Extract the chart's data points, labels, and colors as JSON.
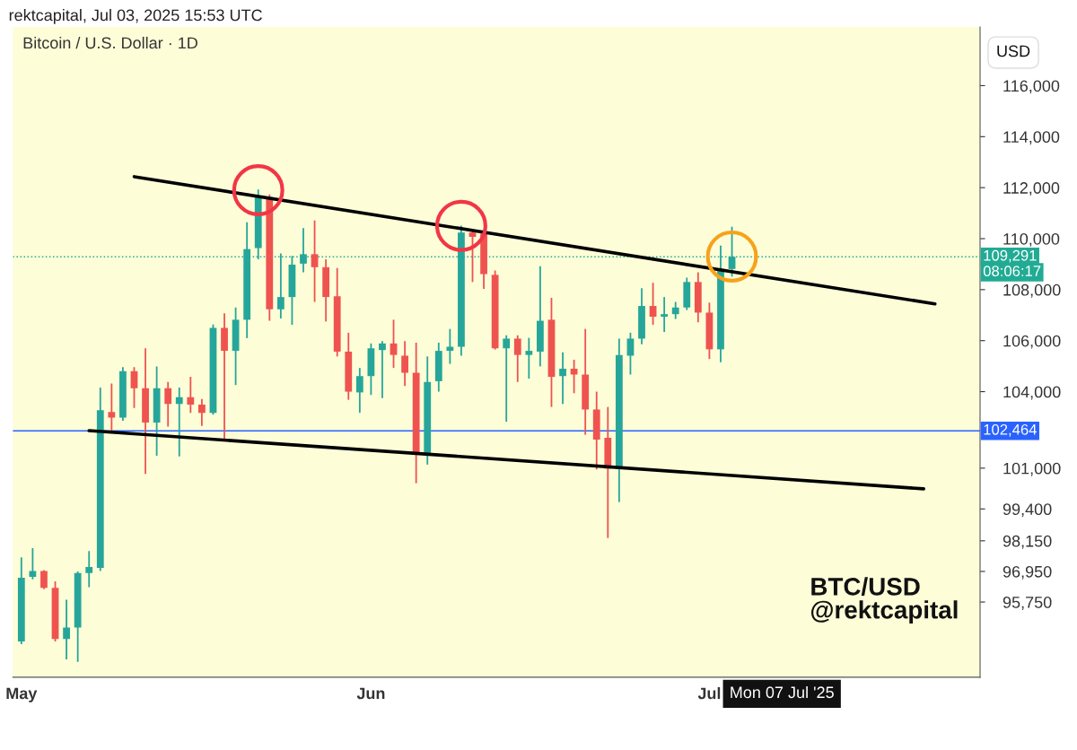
{
  "chart_data": {
    "type": "candlestick",
    "title": "Bitcoin / U.S. Dollar · 1D",
    "annotations": [
      "rektcapital, Jul 03, 2025 15:53 UTC",
      "USD",
      "08:06:17",
      "BTC/USD",
      "@rektcapital",
      "Mon 07 Jul '25"
    ],
    "x": [
      "2025-05-01",
      "2025-05-02",
      "2025-05-03",
      "2025-05-04",
      "2025-05-05",
      "2025-05-06",
      "2025-05-07",
      "2025-05-08",
      "2025-05-09",
      "2025-05-10",
      "2025-05-11",
      "2025-05-12",
      "2025-05-13",
      "2025-05-14",
      "2025-05-15",
      "2025-05-16",
      "2025-05-17",
      "2025-05-18",
      "2025-05-19",
      "2025-05-20",
      "2025-05-21",
      "2025-05-22",
      "2025-05-23",
      "2025-05-24",
      "2025-05-25",
      "2025-05-26",
      "2025-05-27",
      "2025-05-28",
      "2025-05-29",
      "2025-05-30",
      "2025-05-31",
      "2025-06-01",
      "2025-06-02",
      "2025-06-03",
      "2025-06-04",
      "2025-06-05",
      "2025-06-06",
      "2025-06-07",
      "2025-06-08",
      "2025-06-09",
      "2025-06-10",
      "2025-06-11",
      "2025-06-12",
      "2025-06-13",
      "2025-06-14",
      "2025-06-15",
      "2025-06-16",
      "2025-06-17",
      "2025-06-18",
      "2025-06-19",
      "2025-06-20",
      "2025-06-21",
      "2025-06-22",
      "2025-06-23",
      "2025-06-24",
      "2025-06-25",
      "2025-06-26",
      "2025-06-27",
      "2025-06-28",
      "2025-06-29",
      "2025-06-30",
      "2025-07-01",
      "2025-07-02",
      "2025-07-03"
    ],
    "ohlc": [
      [
        94200,
        97500,
        94100,
        96700
      ],
      [
        96740,
        97860,
        96640,
        96970
      ],
      [
        96970,
        97000,
        96250,
        96310
      ],
      [
        96310,
        96560,
        94200,
        94300
      ],
      [
        94300,
        95840,
        93500,
        94750
      ],
      [
        94750,
        96950,
        93400,
        96890
      ],
      [
        96890,
        97750,
        96330,
        97120
      ],
      [
        97090,
        104160,
        96970,
        103270
      ],
      [
        103200,
        104320,
        102410,
        102980
      ],
      [
        102980,
        104960,
        102860,
        104800
      ],
      [
        104800,
        104960,
        103360,
        104130
      ],
      [
        104130,
        105700,
        100770,
        102790
      ],
      [
        102790,
        104990,
        101490,
        104130
      ],
      [
        104130,
        104380,
        102630,
        103520
      ],
      [
        103520,
        104160,
        101460,
        103780
      ],
      [
        103780,
        104580,
        103170,
        103490
      ],
      [
        103490,
        103710,
        102660,
        103170
      ],
      [
        103170,
        106630,
        103100,
        106500
      ],
      [
        106500,
        107070,
        102120,
        105600
      ],
      [
        105600,
        107300,
        104260,
        106820
      ],
      [
        106820,
        110640,
        106100,
        109590
      ],
      [
        109630,
        111930,
        109190,
        111630
      ],
      [
        111630,
        111730,
        106780,
        107230
      ],
      [
        107230,
        109420,
        106870,
        107710
      ],
      [
        107710,
        109320,
        106620,
        108980
      ],
      [
        109020,
        110410,
        108680,
        109390
      ],
      [
        109390,
        110710,
        107520,
        108880
      ],
      [
        108880,
        109190,
        106750,
        107710
      ],
      [
        107740,
        108850,
        105380,
        105570
      ],
      [
        105570,
        106310,
        103680,
        104000
      ],
      [
        103970,
        104930,
        103170,
        104610
      ],
      [
        104610,
        105890,
        103870,
        105700
      ],
      [
        105630,
        105980,
        103750,
        105890
      ],
      [
        105890,
        106820,
        104930,
        105440
      ],
      [
        105410,
        105980,
        104220,
        104740
      ],
      [
        104740,
        105920,
        100410,
        101550
      ],
      [
        101550,
        105380,
        101140,
        104380
      ],
      [
        104410,
        105920,
        104000,
        105600
      ],
      [
        105600,
        106460,
        105090,
        105760
      ],
      [
        105760,
        110510,
        105410,
        110240
      ],
      [
        110240,
        110340,
        108300,
        110070
      ],
      [
        110200,
        110340,
        108030,
        108610
      ],
      [
        108580,
        108750,
        105650,
        105700
      ],
      [
        105700,
        106210,
        102820,
        106080
      ],
      [
        106080,
        106210,
        104380,
        105440
      ],
      [
        105440,
        106110,
        104510,
        105600
      ],
      [
        105570,
        108920,
        104990,
        106780
      ],
      [
        106820,
        107680,
        103400,
        104580
      ],
      [
        104610,
        105540,
        103520,
        104900
      ],
      [
        104900,
        105250,
        103940,
        104670
      ],
      [
        104670,
        106460,
        102310,
        103300
      ],
      [
        103300,
        104000,
        100950,
        102120
      ],
      [
        102190,
        103400,
        98260,
        100980
      ],
      [
        100980,
        106080,
        99670,
        105440
      ],
      [
        105410,
        106310,
        104670,
        106080
      ],
      [
        106080,
        108060,
        105860,
        107360
      ],
      [
        107360,
        108270,
        106620,
        106940
      ],
      [
        106940,
        107710,
        106340,
        107040
      ],
      [
        107040,
        107520,
        106850,
        107300
      ],
      [
        107300,
        108470,
        107200,
        108300
      ],
      [
        108300,
        108680,
        106720,
        107100
      ],
      [
        107100,
        107490,
        105280,
        105660
      ],
      [
        105660,
        109730,
        105150,
        108810
      ],
      [
        108810,
        110470,
        108510,
        109291
      ]
    ],
    "colors": [
      "#26a69a",
      "#26a69a",
      "#ef5350",
      "#ef5350",
      "#26a69a",
      "#26a69a",
      "#26a69a",
      "#26a69a",
      "#ef5350",
      "#26a69a",
      "#ef5350",
      "#ef5350",
      "#26a69a",
      "#ef5350",
      "#26a69a",
      "#ef5350",
      "#ef5350",
      "#26a69a",
      "#ef5350",
      "#26a69a",
      "#26a69a",
      "#26a69a",
      "#ef5350",
      "#26a69a",
      "#26a69a",
      "#26a69a",
      "#ef5350",
      "#ef5350",
      "#ef5350",
      "#ef5350",
      "#26a69a",
      "#26a69a",
      "#26a69a",
      "#ef5350",
      "#ef5350",
      "#ef5350",
      "#26a69a",
      "#26a69a",
      "#26a69a",
      "#26a69a",
      "#ef5350",
      "#ef5350",
      "#ef5350",
      "#26a69a",
      "#ef5350",
      "#26a69a",
      "#26a69a",
      "#ef5350",
      "#26a69a",
      "#ef5350",
      "#ef5350",
      "#ef5350",
      "#ef5350",
      "#26a69a",
      "#26a69a",
      "#26a69a",
      "#ef5350",
      "#26a69a",
      "#26a69a",
      "#26a69a",
      "#ef5350",
      "#ef5350",
      "#26a69a",
      "#26a69a"
    ],
    "series": [
      {
        "type": "line",
        "color": "#000000",
        "x": [
          "2025-05-11",
          "2025-07-21"
        ],
        "values": [
          112430,
          107440
        ]
      },
      {
        "type": "line",
        "color": "#000000",
        "x": [
          "2025-05-07",
          "2025-07-20"
        ],
        "values": [
          102470,
          100190
        ]
      },
      {
        "type": "scatter",
        "marker": "circle",
        "color": "#f23645",
        "x": [
          "2025-05-22",
          "2025-06-09"
        ],
        "values": [
          111900,
          110500
        ]
      },
      {
        "type": "scatter",
        "marker": "circle",
        "color": "#f7a21b",
        "x": [
          "2025-07-03"
        ],
        "values": [
          109300
        ]
      }
    ],
    "ref_lines": [
      {
        "axis": "y",
        "value": 109291,
        "label": "109,291",
        "color": "#22ab94",
        "line_style": "dotted"
      },
      {
        "axis": "y",
        "value": 102464,
        "label": "102,464",
        "color": "#2962ff",
        "line_style": "solid"
      }
    ],
    "xlim": [
      "2025-04-30T06:00",
      "2025-07-25"
    ],
    "xticks": [
      {
        "value": "2025-05-01",
        "label": "May"
      },
      {
        "value": "2025-06-01",
        "label": "Jun"
      },
      {
        "value": "2025-07-01",
        "label": "Jul"
      }
    ],
    "ylim": [
      92800,
      118300
    ],
    "yticks": [
      {
        "value": 95750,
        "label": "95,750"
      },
      {
        "value": 96950,
        "label": "96,950"
      },
      {
        "value": 98150,
        "label": "98,150"
      },
      {
        "value": 99400,
        "label": "99,400"
      },
      {
        "value": 101000,
        "label": "101,000"
      },
      {
        "value": 104000,
        "label": "104,000"
      },
      {
        "value": 106000,
        "label": "106,000"
      },
      {
        "value": 108000,
        "label": "108,000"
      },
      {
        "value": 110000,
        "label": "110,000"
      },
      {
        "value": 112000,
        "label": "112,000"
      },
      {
        "value": 114000,
        "label": "114,000"
      },
      {
        "value": 116000,
        "label": "116,000"
      }
    ],
    "grid": false
  }
}
